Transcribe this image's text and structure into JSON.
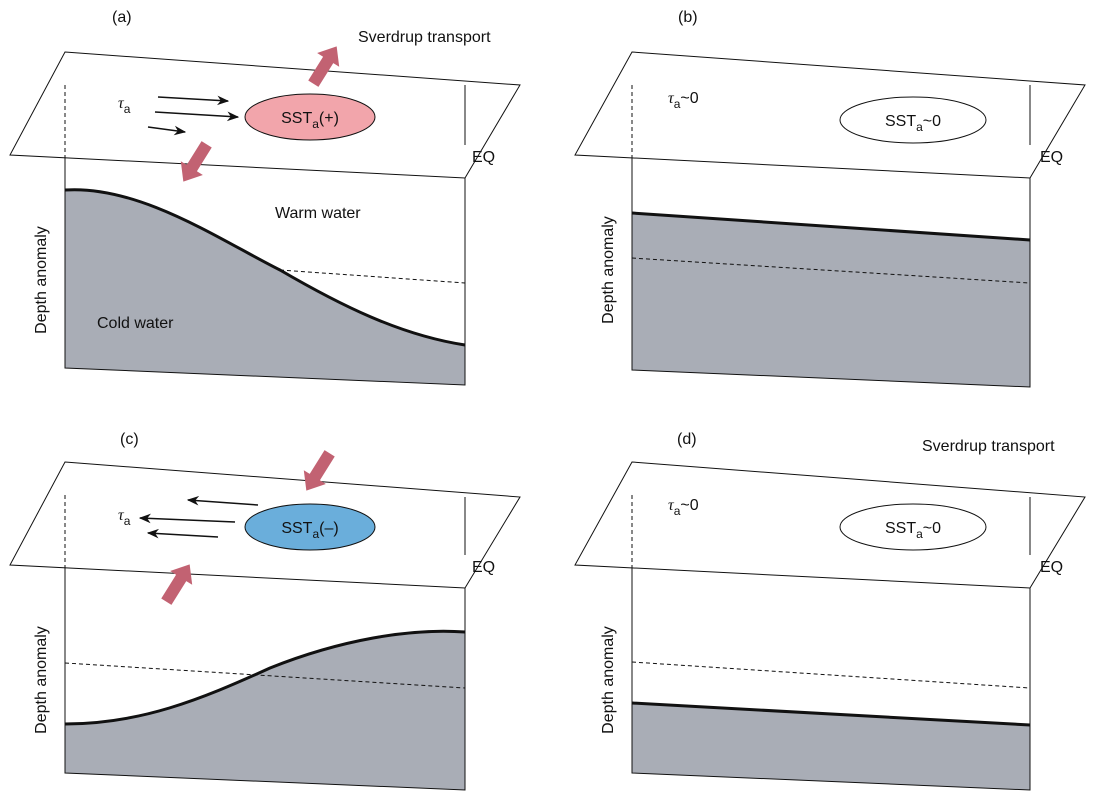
{
  "panels": [
    {
      "label": "(a)",
      "sverdrup": "Sverdrup transport",
      "tau": {
        "symbol": "τ",
        "sub": "a"
      },
      "sst": {
        "text": "SST",
        "sub": "a",
        "suffix": "(+)"
      },
      "eq": "EQ",
      "warm": "Warm water",
      "depth": "Depth anomaly",
      "cold": "Cold water"
    },
    {
      "label": "(b)",
      "tau": {
        "symbol": "τ",
        "sub": "a",
        "suffix": "~0"
      },
      "sst": {
        "text": "SST",
        "sub": "a",
        "suffix": "~0"
      },
      "eq": "EQ",
      "depth": "Depth anomaly"
    },
    {
      "label": "(c)",
      "tau": {
        "symbol": "τ",
        "sub": "a"
      },
      "sst": {
        "text": "SST",
        "sub": "a",
        "suffix": "(–)"
      },
      "eq": "EQ",
      "depth": "Depth anomaly"
    },
    {
      "label": "(d)",
      "sverdrup": "Sverdrup transport",
      "tau": {
        "symbol": "τ",
        "sub": "a",
        "suffix": "~0"
      },
      "sst": {
        "text": "SST",
        "sub": "a",
        "suffix": "~0"
      },
      "eq": "EQ",
      "depth": "Depth anomaly"
    }
  ]
}
